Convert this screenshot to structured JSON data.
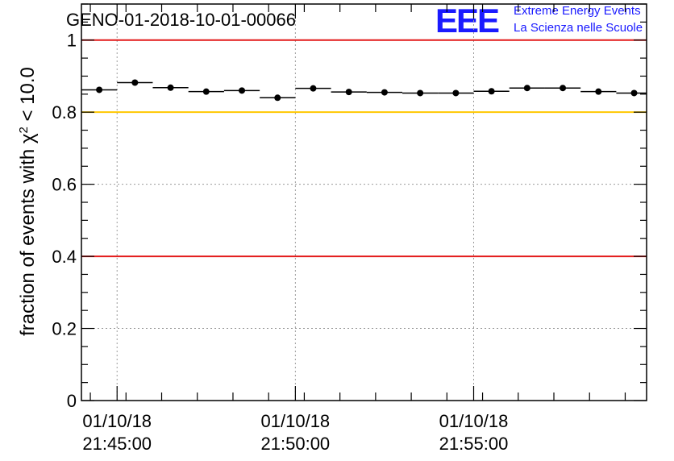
{
  "chart_data": {
    "type": "scatter",
    "title": "GENO-01-2018-10-01-00066",
    "xlabel": "",
    "ylabel_main": "fraction of events with χ",
    "ylabel_sup": "2",
    "ylabel_tail": " < 10.0",
    "xlim_minutes": [
      21.75,
      37.6
    ],
    "ylim": [
      0,
      1.1
    ],
    "yticks": [
      0,
      0.2,
      0.4,
      0.6,
      0.8,
      1
    ],
    "ytick_labels": [
      "0",
      "0.2",
      "0.4",
      "0.6",
      "0.8",
      "1"
    ],
    "xticks_major": [
      {
        "minute": 22.75,
        "date": "01/10/18",
        "time": "21:45:00"
      },
      {
        "minute": 27.75,
        "date": "01/10/18",
        "time": "21:50:00"
      },
      {
        "minute": 32.75,
        "date": "01/10/18",
        "time": "21:55:00"
      }
    ],
    "bin_width_minutes": 1.0,
    "series": [
      {
        "name": "fraction",
        "x_minutes": [
          22.25,
          23.25,
          24.25,
          25.25,
          26.25,
          27.25,
          28.25,
          29.25,
          30.25,
          31.25,
          32.25,
          33.25,
          34.25,
          35.25,
          36.25,
          37.25
        ],
        "values": [
          0.862,
          0.882,
          0.868,
          0.857,
          0.86,
          0.84,
          0.866,
          0.856,
          0.855,
          0.853,
          0.853,
          0.858,
          0.867,
          0.867,
          0.857,
          0.853
        ]
      }
    ],
    "reference_lines": [
      {
        "y": 1.0,
        "color": "#e31a1a"
      },
      {
        "y": 0.8,
        "color": "#ffc800"
      },
      {
        "y": 0.4,
        "color": "#e31a1a"
      }
    ]
  },
  "logo": {
    "letters": "EEE",
    "line1": "Extreme Energy Events",
    "line2": "La Scienza nelle Scuole",
    "color": "#1a1aff"
  }
}
